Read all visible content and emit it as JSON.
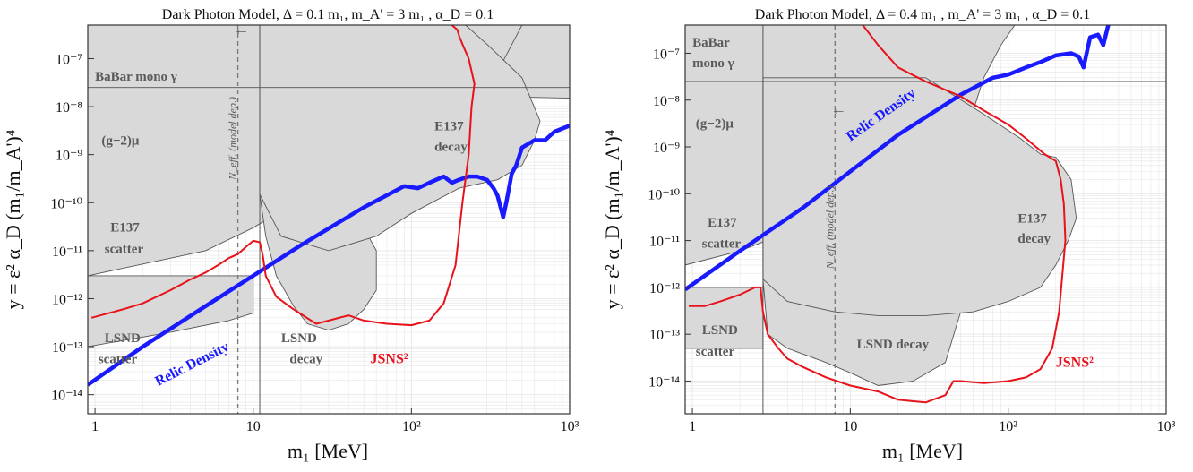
{
  "colors": {
    "excluded_fill": "#d9d9d9",
    "boundary": "#555555",
    "relic": "#1a1aff",
    "jsns": "#e8121a",
    "label_gray": "#5a5a5a",
    "grid": "#e6e6e6"
  },
  "chart_data": [
    {
      "type": "line",
      "title": "Dark Photon Model,  Δ = 0.1 m₁,   m_A' = 3 m₁  ,  α_D = 0.1",
      "xlabel": "m₁ [MeV]",
      "ylabel": "y = ε² α_D (m₁/m_A')⁴",
      "xscale": "log",
      "yscale": "log",
      "xlim": [
        0.9,
        1000
      ],
      "ylim": [
        4e-15,
        5e-07
      ],
      "grid": true,
      "x_ticks": [
        "1",
        "10",
        "10²",
        "10³"
      ],
      "y_ticks": [
        "10⁻¹⁴",
        "10⁻¹³",
        "10⁻¹²",
        "10⁻¹¹",
        "10⁻¹⁰",
        "10⁻⁹",
        "10⁻⁸",
        "10⁻⁷"
      ],
      "region_labels": [
        {
          "text": "BaBar mono γ",
          "x": 1.0,
          "y": 3.5e-08
        },
        {
          "text": "(g−2)μ",
          "x": 1.1,
          "y": 1.6e-09
        },
        {
          "text": "E137",
          "x": 1.25,
          "y": 2.5e-11
        },
        {
          "text": "scatter",
          "x": 1.15,
          "y": 9e-12
        },
        {
          "text": "LSND",
          "x": 1.15,
          "y": 1.25e-13
        },
        {
          "text": "scatter",
          "x": 1.05,
          "y": 4.5e-14
        },
        {
          "text": "LSND",
          "x": 15,
          "y": 1.25e-13
        },
        {
          "text": "decay",
          "x": 17,
          "y": 4.5e-14
        },
        {
          "text": "E137",
          "x": 140,
          "y": 3.2e-09
        },
        {
          "text": "decay",
          "x": 140,
          "y": 1.2e-09
        },
        {
          "text": "N_eff, (model dep.)",
          "x": 7.8,
          "y": 3e-10
        },
        {
          "text": "JSNS²",
          "x": 55,
          "y": 4.5e-14
        },
        {
          "text": "Relic Density",
          "x": 2.5,
          "y": 1.5e-14
        },
        {
          "text": "←",
          "x": 7.5,
          "y": 3.2e-07
        }
      ],
      "series": [
        {
          "name": "Relic Density",
          "x": [
            0.9,
            2,
            5,
            10,
            20,
            50,
            90,
            110,
            130,
            160,
            180,
            200,
            230,
            260,
            300,
            330,
            350,
            380,
            400,
            430,
            460,
            500,
            600,
            700,
            800,
            900,
            1000
          ],
          "y": [
            1.6e-14,
            1e-13,
            7e-13,
            3e-12,
            1.3e-11,
            8e-11,
            2.2e-10,
            2e-10,
            2.6e-10,
            3.5e-10,
            2.6e-10,
            3e-10,
            3.5e-10,
            3.5e-10,
            3e-10,
            2e-10,
            1.4e-10,
            5e-11,
            1.1e-10,
            4e-10,
            6e-10,
            1.4e-09,
            2e-09,
            2e-09,
            3e-09,
            3.5e-09,
            4e-09
          ]
        },
        {
          "name": "JSNS²",
          "x": [
            0.95,
            1.5,
            2,
            3,
            4,
            5,
            6,
            7,
            8,
            9,
            10,
            11,
            11.5,
            12,
            14,
            18,
            25,
            30,
            40,
            50,
            70,
            100,
            130,
            160,
            190,
            210,
            230,
            240,
            250,
            230,
            210,
            200,
            195,
            180,
            170
          ],
          "y": [
            4e-13,
            6e-13,
            8e-13,
            1.5e-12,
            2.5e-12,
            3.5e-12,
            5e-12,
            7e-12,
            8.5e-12,
            1.2e-11,
            1.6e-11,
            1.5e-11,
            8e-12,
            3e-12,
            1.1e-12,
            6e-13,
            3e-13,
            3.5e-13,
            4.5e-13,
            3.5e-13,
            3e-13,
            2.8e-13,
            3.5e-13,
            8e-13,
            5e-12,
            1e-10,
            1e-09,
            1e-08,
            3e-08,
            1e-07,
            2e-07,
            3e-07,
            4e-07,
            5e-07,
            6e-07
          ]
        }
      ],
      "excluded_regions": [
        {
          "name": "BaBar mono γ",
          "x": [
            0.9,
            1000,
            1000,
            0.9
          ],
          "y": [
            2.5e-08,
            1.5e-08,
            5e-07,
            5e-07
          ]
        },
        {
          "name": "(g−2)μ",
          "x": [
            0.9,
            11,
            11,
            0.9
          ],
          "y": [
            1.6e-08,
            1.6e-08,
            5e-07,
            5e-07
          ]
        },
        {
          "name": "E137 scatter",
          "x": [
            0.9,
            5,
            10,
            20,
            40,
            80,
            150,
            300,
            500,
            11,
            0.9
          ],
          "y": [
            3e-12,
            1e-11,
            3e-11,
            1.2e-10,
            6e-10,
            3e-09,
            1e-08,
            2e-08,
            5e-07,
            5e-07,
            5e-07
          ]
        },
        {
          "name": "LSND scatter",
          "x": [
            0.9,
            3,
            7,
            10,
            10,
            0.9
          ],
          "y": [
            1e-13,
            2e-13,
            3.5e-13,
            5e-13,
            3e-12,
            3e-12
          ]
        },
        {
          "name": "LSND decay",
          "x": [
            11,
            12,
            14,
            18,
            22,
            30,
            40,
            50,
            60,
            60,
            50,
            30,
            20,
            12
          ],
          "y": [
            1.5e-10,
            2e-11,
            3e-12,
            7e-13,
            3e-13,
            2.2e-13,
            3e-13,
            6e-13,
            1.5e-12,
            1e-11,
            3e-11,
            1.1e-10,
            3.5e-10,
            1e-09
          ]
        },
        {
          "name": "E137 decay",
          "x": [
            11,
            15,
            30,
            60,
            100,
            200,
            350,
            500,
            600,
            650,
            500,
            300,
            220,
            120,
            60,
            30,
            15,
            11
          ],
          "y": [
            1.5e-10,
            2e-11,
            1e-11,
            2e-11,
            6e-11,
            2e-10,
            3e-10,
            6e-10,
            2e-09,
            5e-09,
            4e-08,
            2e-07,
            5e-07,
            5e-07,
            5e-07,
            5e-07,
            5e-07,
            5e-07
          ]
        }
      ],
      "reference_lines": [
        {
          "name": "N_eff",
          "orientation": "vertical",
          "x": 8,
          "style": "dashed"
        },
        {
          "name": "m_threshold",
          "orientation": "vertical",
          "x": 11,
          "style": "solid"
        },
        {
          "name": "BaBar boundary",
          "orientation": "horizontal",
          "y": 2.5e-08,
          "style": "solid"
        }
      ]
    },
    {
      "type": "line",
      "title": "Dark Photon Model,  Δ = 0.4 m₁ ,  m_A' = 3 m₁  , α_D = 0.1",
      "xlabel": "m₁ [MeV]",
      "ylabel": "y = ε² α_D (m₁/m_A')⁴",
      "xscale": "log",
      "yscale": "log",
      "xlim": [
        0.9,
        1000
      ],
      "ylim": [
        2e-15,
        4e-07
      ],
      "grid": true,
      "x_ticks": [
        "1",
        "10",
        "10²",
        "10³"
      ],
      "y_ticks": [
        "10⁻¹⁴",
        "10⁻¹³",
        "10⁻¹²",
        "10⁻¹¹",
        "10⁻¹⁰",
        "10⁻⁹",
        "10⁻⁸",
        "10⁻⁷"
      ],
      "region_labels": [
        {
          "text": "BaBar",
          "x": 1.0,
          "y": 1.4e-07
        },
        {
          "text": "mono γ",
          "x": 1.0,
          "y": 5e-08
        },
        {
          "text": "(g−2)μ",
          "x": 1.05,
          "y": 2.6e-09
        },
        {
          "text": "E137",
          "x": 1.25,
          "y": 2e-11
        },
        {
          "text": "scatter",
          "x": 1.15,
          "y": 7e-12
        },
        {
          "text": "LSND",
          "x": 1.15,
          "y": 1e-13
        },
        {
          "text": "scatter",
          "x": 1.05,
          "y": 3.5e-14
        },
        {
          "text": "LSND decay",
          "x": 11,
          "y": 5e-14
        },
        {
          "text": "E137",
          "x": 115,
          "y": 2.4e-11
        },
        {
          "text": "decay",
          "x": 115,
          "y": 9e-12
        },
        {
          "text": "N_eff, (model dep.)",
          "x": 7.8,
          "y": 2.5e-12
        },
        {
          "text": "JSNS²",
          "x": 200,
          "y": 2e-14
        },
        {
          "text": "Relic Density",
          "x": 10,
          "y": 1.3e-09
        },
        {
          "text": "←",
          "x": 7.5,
          "y": 5e-09
        }
      ],
      "series": [
        {
          "name": "Relic Density",
          "x": [
            0.9,
            2,
            5,
            10,
            20,
            50,
            80,
            100,
            130,
            160,
            200,
            250,
            280,
            300,
            330,
            370,
            400,
            430
          ],
          "y": [
            9e-13,
            6e-12,
            5e-11,
            3e-10,
            1.8e-09,
            1.3e-08,
            3e-08,
            3.5e-08,
            5e-08,
            6.5e-08,
            9e-08,
            1e-07,
            8.5e-08,
            5e-08,
            2.2e-07,
            2.5e-07,
            1.5e-07,
            4e-07
          ]
        },
        {
          "name": "JSNS²",
          "x": [
            0.95,
            1.2,
            1.5,
            2,
            2.5,
            2.7,
            2.8,
            3,
            3.5,
            4,
            5,
            7,
            10,
            15,
            20,
            30,
            40,
            45,
            50,
            70,
            100,
            130,
            160,
            190,
            210,
            230,
            225,
            215,
            200,
            170,
            130,
            100,
            70,
            50,
            30,
            20,
            15,
            12
          ],
          "y": [
            4e-13,
            4e-13,
            5e-13,
            7e-13,
            1e-12,
            1e-12,
            3e-13,
            1e-13,
            5e-14,
            3e-14,
            2e-14,
            1.2e-14,
            8e-15,
            6e-15,
            4e-15,
            3.5e-15,
            5e-15,
            1e-14,
            1e-14,
            9e-15,
            1e-14,
            1.2e-14,
            1.8e-14,
            5e-14,
            3e-13,
            1e-11,
            6e-11,
            2e-10,
            5e-10,
            7e-10,
            1.5e-09,
            3e-09,
            6e-09,
            1.2e-08,
            2.5e-08,
            5e-08,
            1.5e-07,
            4e-07
          ]
        }
      ],
      "excluded_regions": [
        {
          "name": "BaBar mono γ",
          "x": [
            0.9,
            30,
            30,
            0.9
          ],
          "y": [
            2.5e-08,
            2.5e-08,
            4e-07,
            4e-07
          ]
        },
        {
          "name": "(g−2)μ",
          "x": [
            0.9,
            30,
            30,
            0.9
          ],
          "y": [
            1e-08,
            1e-08,
            4e-07,
            4e-07
          ]
        },
        {
          "name": "E137 scatter",
          "x": [
            0.9,
            2,
            5,
            10,
            20,
            40,
            60,
            70,
            90,
            110,
            0.9
          ],
          "y": [
            3e-12,
            6e-12,
            2e-11,
            6e-11,
            2e-10,
            1e-09,
            6e-09,
            3e-08,
            1.5e-07,
            4e-07,
            4e-07
          ]
        },
        {
          "name": "LSND scatter",
          "x": [
            0.9,
            2.8,
            2.8,
            0.9
          ],
          "y": [
            5e-14,
            5e-14,
            1e-12,
            1e-12
          ]
        },
        {
          "name": "LSND decay",
          "x": [
            2.8,
            3,
            4,
            7,
            10,
            15,
            25,
            40,
            50,
            45,
            30,
            15,
            8,
            4,
            2.8
          ],
          "y": [
            1.5e-12,
            1e-13,
            5e-14,
            2.5e-14,
            1.5e-14,
            8e-15,
            1e-14,
            2.5e-14,
            3e-13,
            5e-12,
            8e-12,
            6e-12,
            4e-12,
            2e-12,
            1.5e-12
          ]
        },
        {
          "name": "E137 decay",
          "x": [
            2.8,
            4,
            8,
            15,
            30,
            60,
            100,
            160,
            200,
            240,
            270,
            250,
            200,
            160,
            120,
            70,
            30,
            2.8
          ],
          "y": [
            1.5e-12,
            5e-13,
            3e-13,
            2.5e-13,
            2.5e-13,
            3e-13,
            5e-13,
            1e-12,
            3e-12,
            1e-11,
            3e-11,
            2e-10,
            6e-10,
            7e-10,
            1.5e-09,
            5e-09,
            3e-08,
            3e-08
          ]
        }
      ],
      "reference_lines": [
        {
          "name": "N_eff",
          "orientation": "vertical",
          "x": 8,
          "style": "dashed"
        },
        {
          "name": "m_threshold",
          "orientation": "vertical",
          "x": 2.8,
          "style": "solid"
        },
        {
          "name": "BaBar boundary",
          "orientation": "horizontal",
          "y": 2.5e-08,
          "style": "solid"
        }
      ]
    }
  ]
}
